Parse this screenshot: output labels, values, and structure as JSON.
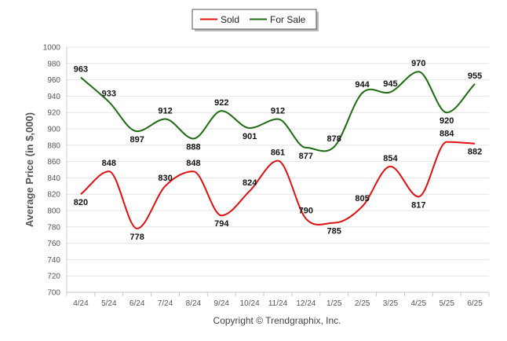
{
  "chart_data": {
    "type": "line",
    "categories": [
      "4/24",
      "5/24",
      "6/24",
      "7/24",
      "8/24",
      "9/24",
      "10/24",
      "11/24",
      "12/24",
      "1/25",
      "2/25",
      "3/25",
      "4/25",
      "5/25",
      "6/25"
    ],
    "series": [
      {
        "name": "Sold",
        "color": "#e01010",
        "values": [
          820,
          848,
          778,
          830,
          848,
          794,
          824,
          861,
          790,
          785,
          805,
          854,
          817,
          884,
          882
        ]
      },
      {
        "name": "For Sale",
        "color": "#1e6b12",
        "values": [
          963,
          933,
          897,
          912,
          888,
          922,
          901,
          912,
          877,
          878,
          944,
          945,
          970,
          920,
          955
        ]
      }
    ],
    "ylabel": "Average Price (in $,000)",
    "xlabel": "",
    "ylim": [
      700,
      1000
    ],
    "yticks": [
      700,
      720,
      740,
      760,
      780,
      800,
      820,
      840,
      860,
      880,
      900,
      920,
      940,
      960,
      980,
      1000
    ],
    "grid": true,
    "legend_position": "top-center"
  },
  "footer": {
    "credit": "Copyright © Trendgraphix, Inc."
  }
}
